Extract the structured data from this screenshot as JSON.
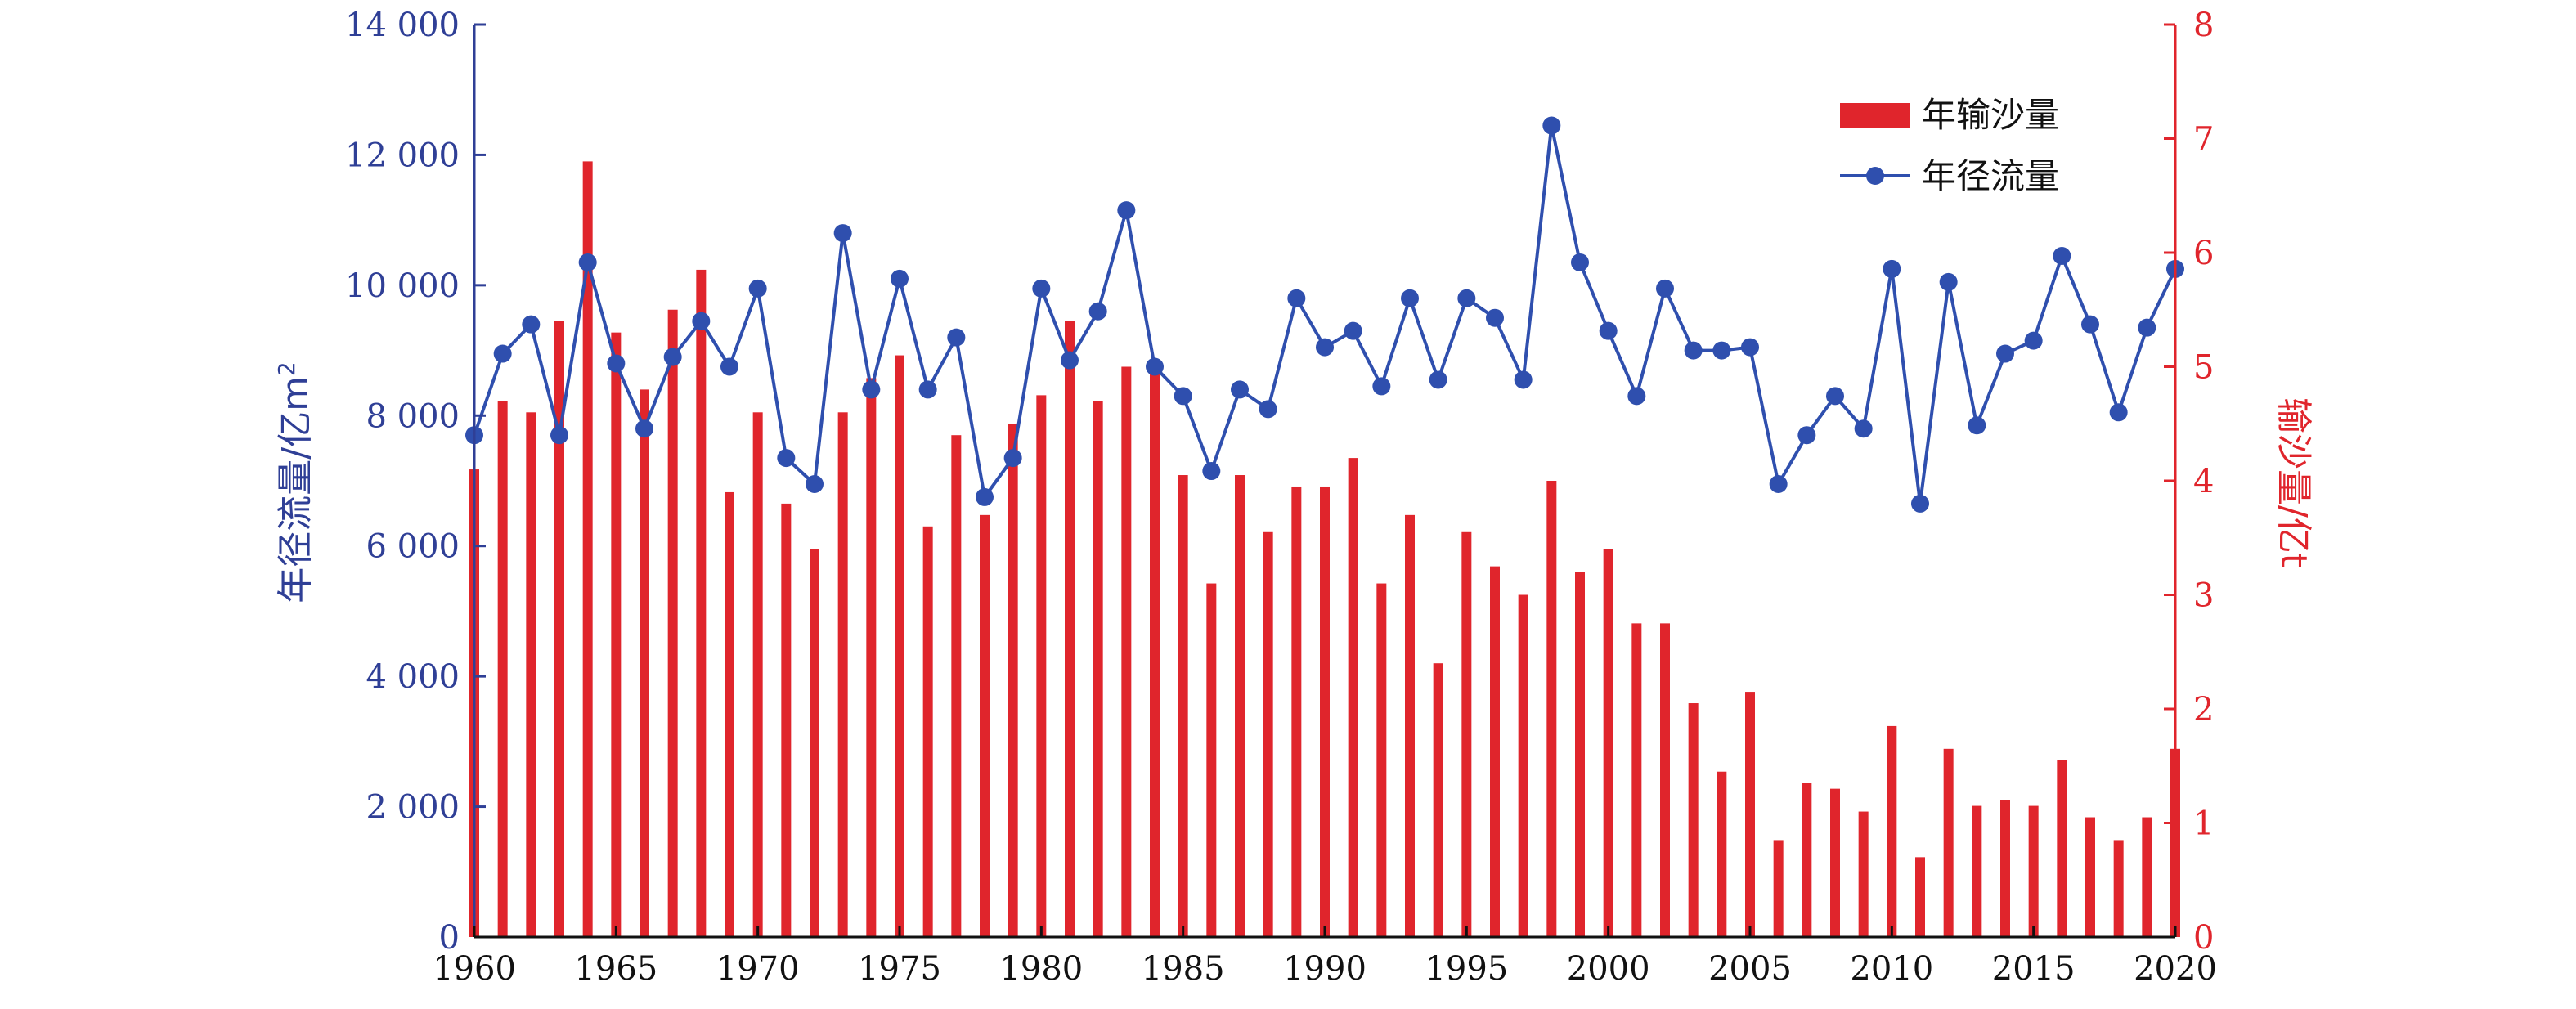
{
  "chart_data": {
    "type": "bar+line",
    "x": [
      1960,
      1961,
      1962,
      1963,
      1964,
      1965,
      1966,
      1967,
      1968,
      1969,
      1970,
      1971,
      1972,
      1973,
      1974,
      1975,
      1976,
      1977,
      1978,
      1979,
      1980,
      1981,
      1982,
      1983,
      1984,
      1985,
      1986,
      1987,
      1988,
      1989,
      1990,
      1991,
      1992,
      1993,
      1994,
      1995,
      1996,
      1997,
      1998,
      1999,
      2000,
      2001,
      2002,
      2003,
      2004,
      2005,
      2006,
      2007,
      2008,
      2009,
      2010,
      2011,
      2012,
      2013,
      2014,
      2015,
      2016,
      2017,
      2018,
      2019,
      2020
    ],
    "x_ticks": [
      1960,
      1965,
      1970,
      1975,
      1980,
      1985,
      1990,
      1995,
      2000,
      2005,
      2010,
      2015,
      2020
    ],
    "xlim": [
      1960,
      2020
    ],
    "series": [
      {
        "name": "年输沙量",
        "kind": "bar",
        "axis": "right",
        "color": "#e0252c",
        "values": [
          4.1,
          4.7,
          4.6,
          5.4,
          6.8,
          5.3,
          4.8,
          5.5,
          5.85,
          3.9,
          4.6,
          3.8,
          3.4,
          4.6,
          4.9,
          5.1,
          3.6,
          4.4,
          3.7,
          4.5,
          4.75,
          5.4,
          4.7,
          5.0,
          5.0,
          4.05,
          3.1,
          4.05,
          3.55,
          3.95,
          3.95,
          4.2,
          3.1,
          3.7,
          2.4,
          3.55,
          3.25,
          3.0,
          4.0,
          3.2,
          3.4,
          2.75,
          2.75,
          2.05,
          1.45,
          2.15,
          0.85,
          1.35,
          1.3,
          1.1,
          1.85,
          0.7,
          1.65,
          1.15,
          1.2,
          1.15,
          1.55,
          1.05,
          0.85,
          1.05,
          1.65
        ]
      },
      {
        "name": "年径流量",
        "kind": "line",
        "axis": "left",
        "color": "#2f4fae",
        "values": [
          7700,
          8950,
          9400,
          7700,
          10350,
          8800,
          7800,
          8900,
          9450,
          8750,
          9950,
          7350,
          6950,
          10800,
          8400,
          10100,
          8400,
          9200,
          6750,
          7350,
          9950,
          8850,
          9600,
          11150,
          8750,
          8300,
          7150,
          8400,
          8100,
          9800,
          9050,
          9300,
          8450,
          9800,
          8550,
          9800,
          9500,
          8550,
          12450,
          10350,
          9300,
          8300,
          9950,
          9000,
          9000,
          9050,
          6950,
          7700,
          8300,
          7800,
          10250,
          6650,
          10050,
          7850,
          8950,
          9150,
          10450,
          9400,
          8050,
          9350,
          10250
        ]
      }
    ],
    "y_left": {
      "label": "年径流量/亿m²",
      "label_main": "年径流量/亿m",
      "label_sup": "2",
      "ylim": [
        0,
        14000
      ],
      "ticks": [
        0,
        2000,
        4000,
        6000,
        8000,
        10000,
        12000,
        14000
      ],
      "tick_labels": [
        "0",
        "2 000",
        "4 000",
        "6 000",
        "8 000",
        "10 000",
        "12 000",
        "14 000"
      ],
      "color": "#2f3f96"
    },
    "y_right": {
      "label": "输沙量/亿t",
      "ylim": [
        0,
        8
      ],
      "ticks": [
        0,
        1,
        2,
        3,
        4,
        5,
        6,
        7,
        8
      ],
      "tick_labels": [
        "0",
        "1",
        "2",
        "3",
        "4",
        "5",
        "6",
        "7",
        "8"
      ],
      "color": "#e0252c"
    },
    "legend": {
      "placement": "top-right",
      "items": [
        "年输沙量",
        "年径流量"
      ]
    },
    "grid": false
  }
}
